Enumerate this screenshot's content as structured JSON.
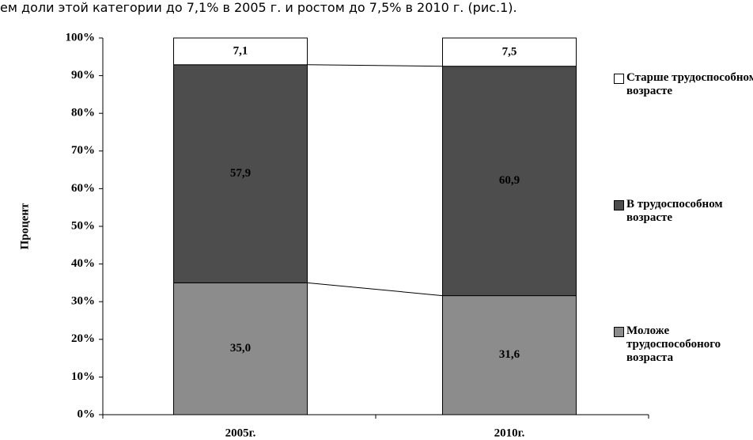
{
  "document": {
    "text": "ем доли этой категории до 7,1% в 2005 г. и ростом до 7,5% в 2010 г. (рис.1)."
  },
  "chart_data": {
    "type": "stacked_bar",
    "y_label": "Процент",
    "categories": [
      "2005г.",
      "2010г."
    ],
    "series": [
      {
        "name": "Моложе трудоспособоного возраста",
        "color": "#8c8c8c",
        "values": [
          35.0,
          31.6
        ],
        "value_labels": [
          "35,0",
          "31,6"
        ]
      },
      {
        "name": "В трудоспособном возрасте",
        "color": "#4d4d4d",
        "values": [
          57.9,
          60.9
        ],
        "value_labels": [
          "57,9",
          "60,9"
        ]
      },
      {
        "name": "Старше трудоспособном возрасте",
        "color": "#ffffff",
        "values": [
          7.1,
          7.5
        ],
        "value_labels": [
          "7,1",
          "7,5"
        ]
      }
    ],
    "ylim": [
      0,
      100
    ],
    "yticks": [
      {
        "value": 0,
        "label": "0%"
      },
      {
        "value": 10,
        "label": "10%"
      },
      {
        "value": 20,
        "label": "20%"
      },
      {
        "value": 30,
        "label": "30%"
      },
      {
        "value": 40,
        "label": "40%"
      },
      {
        "value": 50,
        "label": "50%"
      },
      {
        "value": 60,
        "label": "60%"
      },
      {
        "value": 70,
        "label": "70%"
      },
      {
        "value": 80,
        "label": "80%"
      },
      {
        "value": 90,
        "label": "90%"
      },
      {
        "value": 100,
        "label": "100%"
      }
    ],
    "legend": "right"
  }
}
